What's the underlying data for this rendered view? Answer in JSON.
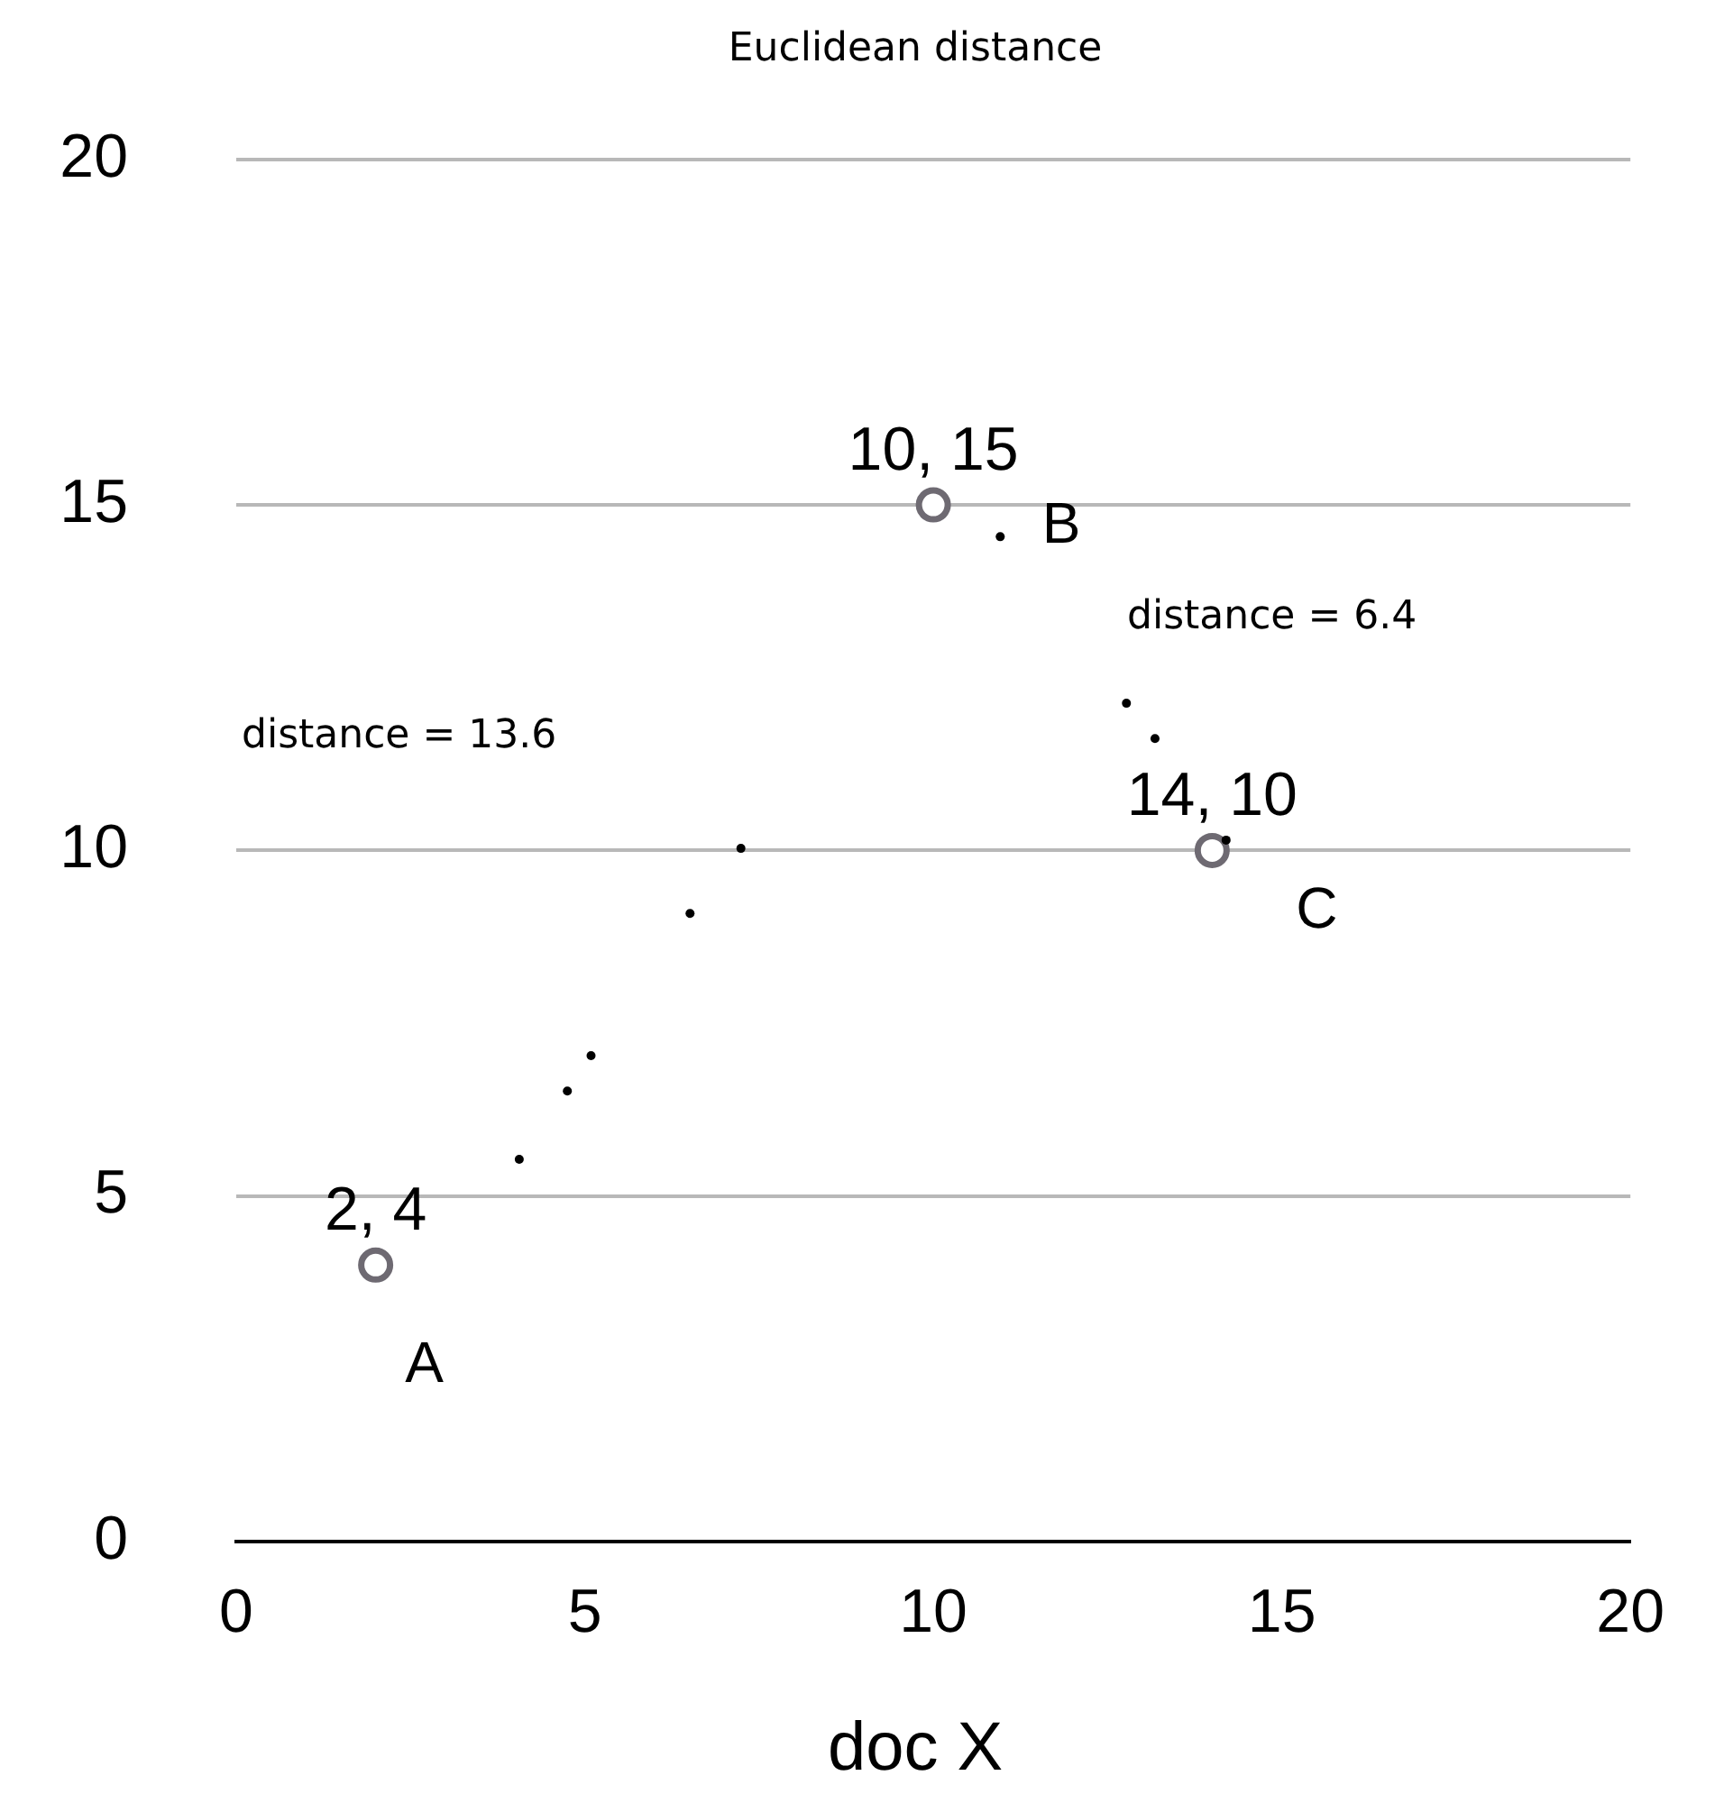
{
  "chart_data": {
    "type": "scatter",
    "title": "Euclidean distance",
    "xlabel": "doc X",
    "xlim": [
      0,
      20
    ],
    "xticks": [
      0,
      5,
      10,
      15,
      20
    ],
    "ylim": [
      0,
      20
    ],
    "yticks": [
      0,
      5,
      10,
      15,
      20
    ],
    "grid": "y",
    "legend": false,
    "marker": "circle",
    "series": [
      {
        "color": "#6e6a72",
        "x": [
          2,
          10,
          14
        ],
        "values": [
          4,
          15,
          10
        ],
        "value_labels": [
          "2, 4",
          "10, 15",
          "14, 10"
        ]
      },
      {
        "color": "#000000",
        "x": [
          4.06,
          4.75,
          5.09,
          6.51,
          7.24,
          10.96,
          12.77,
          13.18,
          14.2
        ],
        "values": [
          5.53,
          6.52,
          7.03,
          9.09,
          10.03,
          14.54,
          12.13,
          11.62,
          10.15
        ]
      }
    ],
    "annotations": [
      {
        "text": "A",
        "x": 2,
        "y": 4
      },
      {
        "text": "B",
        "x": 10,
        "y": 15
      },
      {
        "text": "C",
        "x": 14,
        "y": 10
      },
      "distance = 13.6",
      "distance = 6.4"
    ]
  }
}
